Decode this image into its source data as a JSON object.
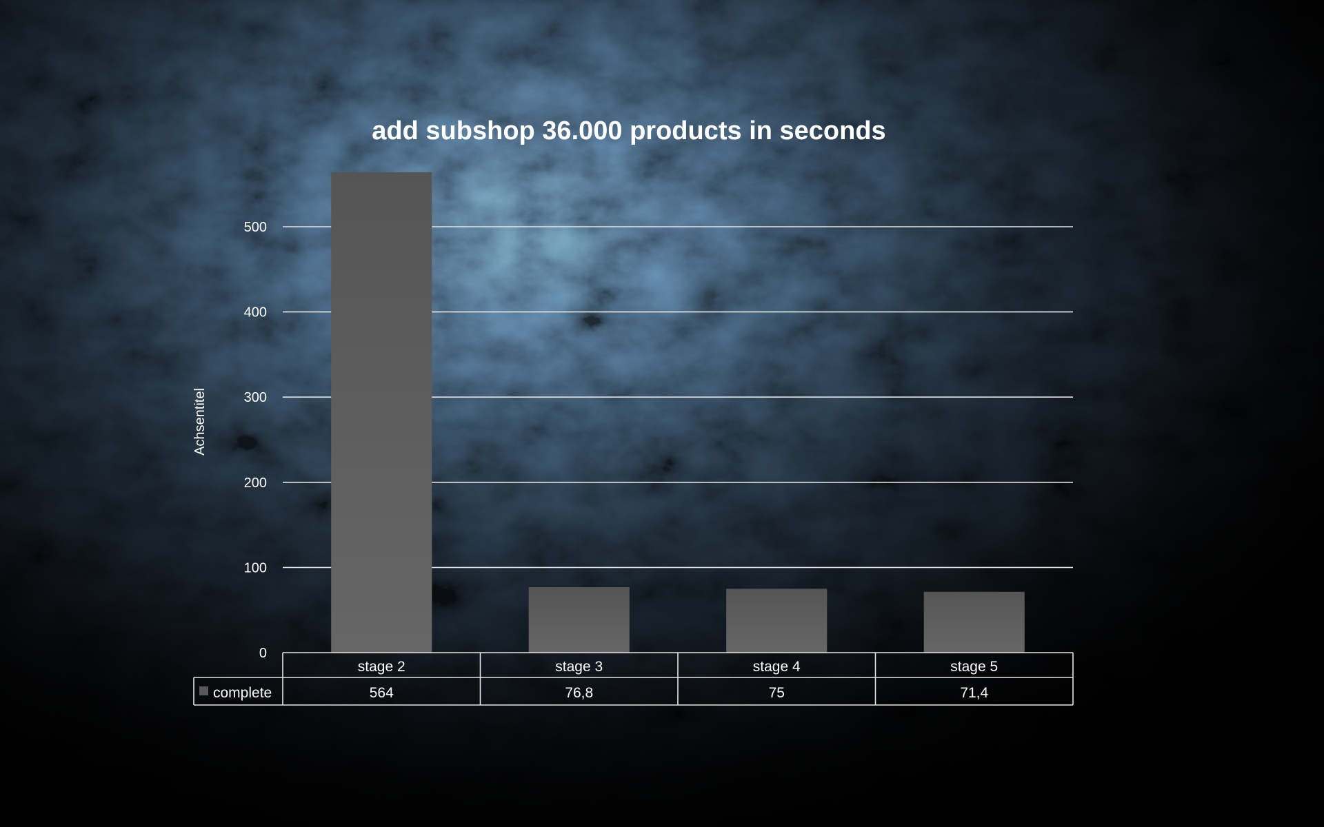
{
  "chart_data": {
    "type": "bar",
    "title": "add subshop 36.000 products in seconds",
    "ylabel": "Achsentitel",
    "xlabel": "",
    "categories": [
      "stage 2",
      "stage 3",
      "stage 4",
      "stage 5"
    ],
    "series": [
      {
        "name": "complete",
        "values": [
          564,
          76.8,
          75,
          71.4
        ],
        "value_labels": [
          "564",
          "76,8",
          "75",
          "71,4"
        ],
        "color": "#595959"
      }
    ],
    "ylim": [
      0,
      564
    ],
    "yticks": [
      0,
      100,
      200,
      300,
      400,
      500
    ],
    "grid": true,
    "legend": "data-table-left",
    "data_table": true
  }
}
